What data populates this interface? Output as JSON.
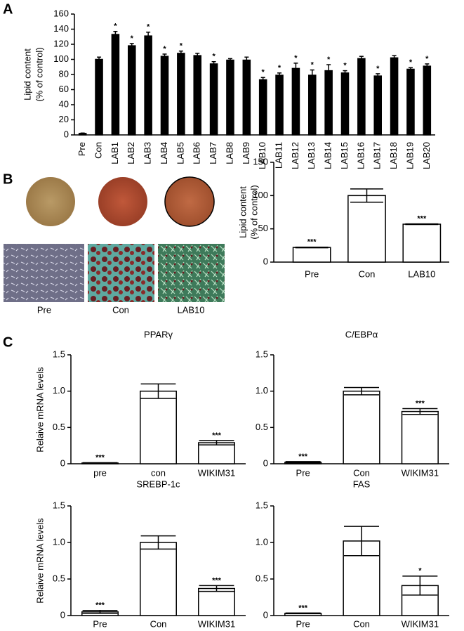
{
  "panels": [
    "A",
    "B",
    "C"
  ],
  "image_labels": [
    "Pre",
    "Con",
    "LAB10"
  ],
  "chart_data": [
    {
      "type": "bar",
      "ylabel": [
        "Lipid content",
        "(% of control)"
      ],
      "categories": [
        "Pre",
        "Con",
        "LAB1",
        "LAB2",
        "LAB3",
        "LAB4",
        "LAB5",
        "LAB6",
        "LAB7",
        "LAB8",
        "LAB9",
        "LAB10",
        "LAB11",
        "LAB12",
        "LAB13",
        "LAB14",
        "LAB15",
        "LAB16",
        "LAB17",
        "LAB18",
        "LAB19",
        "LAB20"
      ],
      "values": [
        2,
        100,
        133,
        118,
        131,
        104,
        108,
        105,
        94,
        99,
        99,
        73,
        79,
        88,
        79,
        85,
        82,
        101,
        78,
        102,
        87,
        91
      ],
      "errors": [
        0.5,
        3,
        4,
        3,
        5,
        3,
        3,
        3,
        3,
        2,
        4,
        3,
        3,
        7,
        7,
        8,
        3,
        3,
        3,
        3,
        2,
        3
      ],
      "annotations": [
        null,
        null,
        "*",
        "*",
        "*",
        "*",
        "*",
        null,
        "*",
        null,
        null,
        "*",
        "*",
        "*",
        "*",
        "*",
        "*",
        null,
        "*",
        null,
        "*",
        "*"
      ],
      "color": "#000000",
      "ylim": [
        0,
        160
      ],
      "yticks": [
        0,
        20,
        40,
        60,
        80,
        100,
        120,
        140,
        160
      ]
    },
    {
      "type": "bar",
      "ylabel": [
        "Lipid content",
        "(% of control)"
      ],
      "categories": [
        "Pre",
        "Con",
        "LAB10"
      ],
      "values": [
        22,
        100,
        57
      ],
      "errors": [
        0.5,
        10,
        0.5
      ],
      "annotations": [
        "***",
        null,
        "***"
      ],
      "color": "#ffffff",
      "ylim": [
        0,
        150
      ],
      "yticks": [
        0,
        50,
        100,
        150
      ]
    },
    {
      "type": "bar",
      "title": "PPARγ",
      "ylabel": "Relaive mRNA levels",
      "categories": [
        "pre",
        "con",
        "WIKIM31"
      ],
      "values": [
        0.01,
        1.0,
        0.29
      ],
      "errors": [
        0.005,
        0.1,
        0.03
      ],
      "annotations": [
        "***",
        null,
        "***"
      ],
      "color": "#ffffff",
      "ylim": [
        0,
        1.5
      ],
      "yticks": [
        0,
        0.5,
        {
          "value": 1,
          "label": "1.0"
        },
        1.5
      ]
    },
    {
      "type": "bar",
      "title": "C/EBPα",
      "categories": [
        "Pre",
        "Con",
        "WIKIM31"
      ],
      "values": [
        0.02,
        1.0,
        0.72
      ],
      "errors": [
        0.01,
        0.05,
        0.04
      ],
      "annotations": [
        "***",
        null,
        "***"
      ],
      "color": "#ffffff",
      "ylim": [
        0,
        1.5
      ],
      "yticks": [
        0,
        0.5,
        {
          "value": 1,
          "label": "1.0"
        },
        1.5
      ]
    },
    {
      "type": "bar",
      "title": "SREBP-1c",
      "ylabel": "Relaive mRNA levels",
      "categories": [
        "Pre",
        "Con",
        "WIKIM31"
      ],
      "values": [
        0.05,
        1.0,
        0.37
      ],
      "errors": [
        0.02,
        0.09,
        0.04
      ],
      "annotations": [
        "***",
        null,
        "***"
      ],
      "color": "#ffffff",
      "ylim": [
        0,
        1.5
      ],
      "yticks": [
        0,
        0.5,
        {
          "value": 1,
          "label": "1.0"
        },
        1.5
      ]
    },
    {
      "type": "bar",
      "title": "FAS",
      "categories": [
        "Pre",
        "Con",
        "WIKIM31"
      ],
      "values": [
        0.03,
        1.02,
        0.41
      ],
      "errors": [
        0.005,
        0.2,
        0.13
      ],
      "annotations": [
        "***",
        null,
        "*"
      ],
      "color": "#ffffff",
      "ylim": [
        0,
        1.5
      ],
      "yticks": [
        0,
        0.5,
        {
          "value": 1,
          "label": "1.0"
        },
        1.5
      ]
    }
  ]
}
